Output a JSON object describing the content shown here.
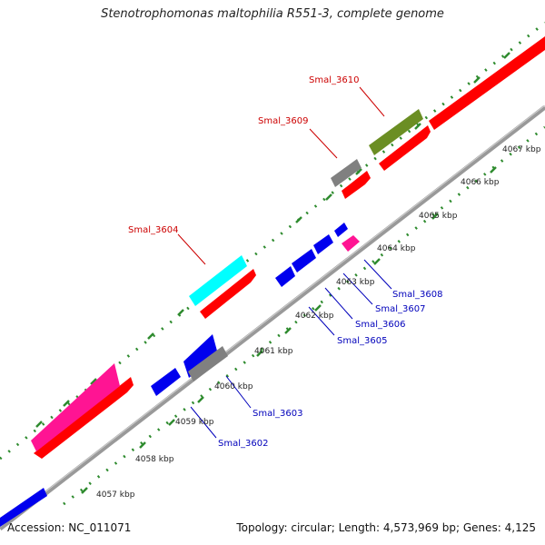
{
  "title": "Stenotrophomonas maltophilia R551-3, complete genome",
  "footer": {
    "accession": "Accession: NC_011071",
    "summary": "Topology: circular; Length: 4,573,969 bp; Genes: 4,125"
  },
  "colors": {
    "backbone": "#999999",
    "tick": "#2e8b2e",
    "label_top": "#cc0000",
    "label_bottom": "#0000bb",
    "red": "#ff0000",
    "blue": "#0000ee",
    "magenta": "#ff1493",
    "cyan": "#00ffff",
    "olive": "#6b8e23",
    "gray": "#808080"
  },
  "kbp_labels": [
    "4057 kbp",
    "4058 kbp",
    "4059 kbp",
    "4060 kbp",
    "4061 kbp",
    "4062 kbp",
    "4063 kbp",
    "4064 kbp",
    "4065 kbp",
    "4066 kbp",
    "4067 kbp"
  ],
  "gene_labels": {
    "top": [
      "Smal_3604",
      "Smal_3609",
      "Smal_3610"
    ],
    "bottom": [
      "Smal_3602",
      "Smal_3603",
      "Smal_3605",
      "Smal_3606",
      "Smal_3607",
      "Smal_3608"
    ]
  }
}
